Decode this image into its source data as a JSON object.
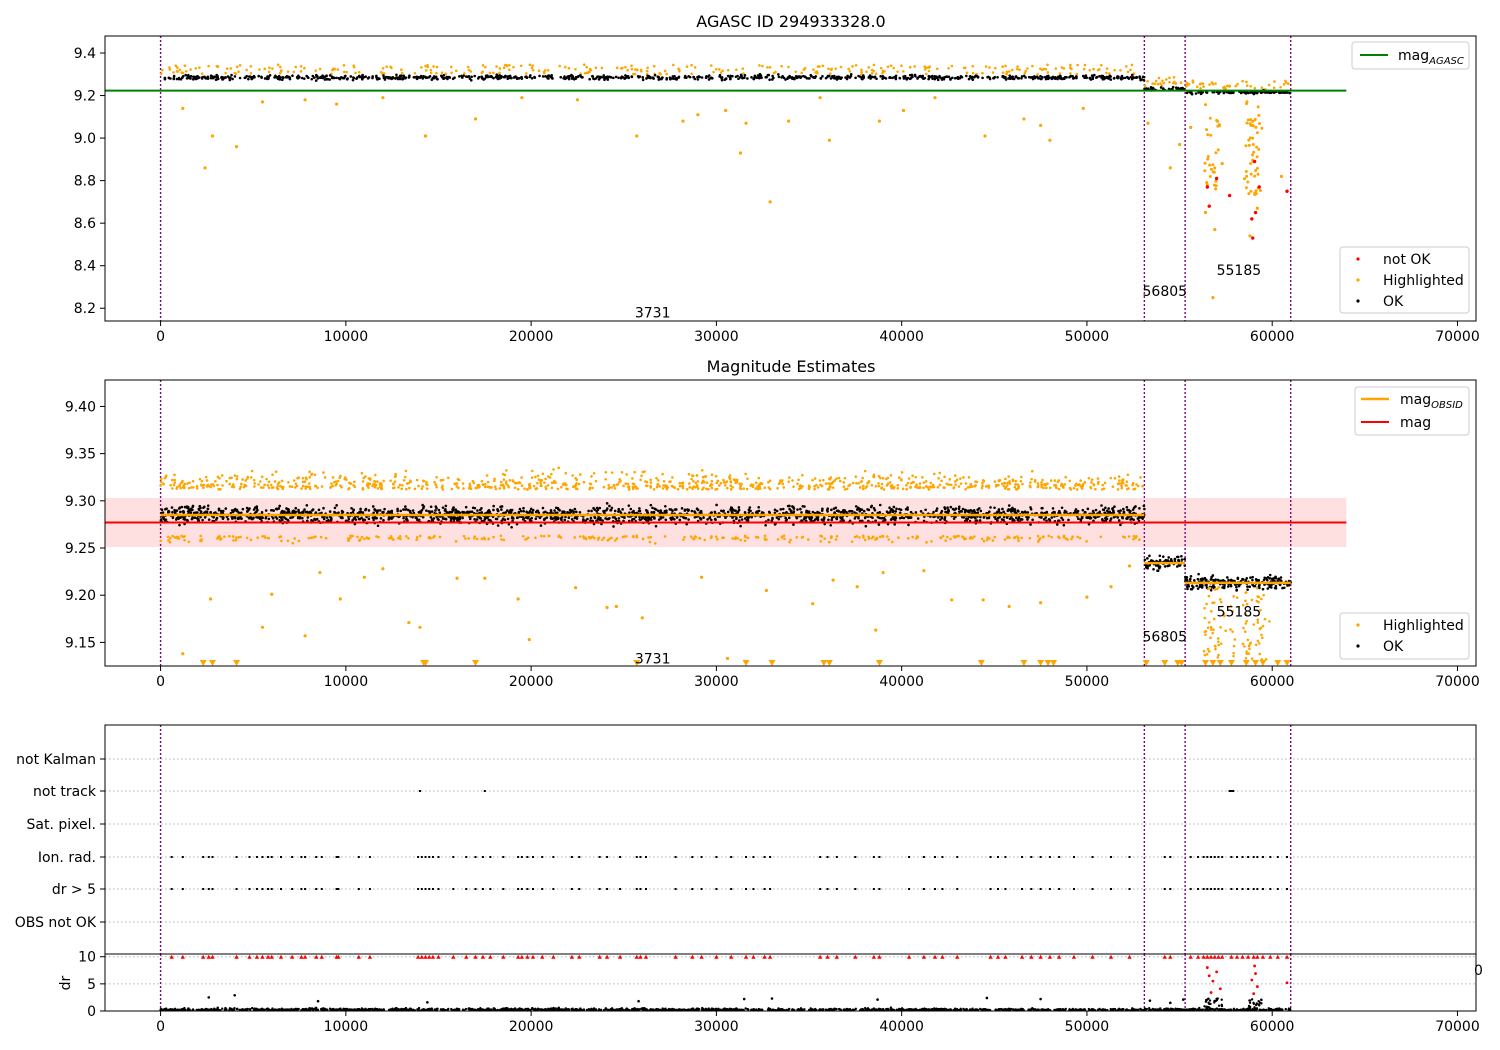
{
  "chart_data": [
    {
      "type": "scatter",
      "title": "AGASC ID 294933328.0",
      "xlim": [
        -3000,
        71000
      ],
      "ylim": [
        8.14,
        9.48
      ],
      "xticks": [
        "0",
        "10000",
        "20000",
        "30000",
        "40000",
        "50000",
        "60000",
        "70000"
      ],
      "yticks": [
        "8.2",
        "8.4",
        "8.6",
        "8.8",
        "9.0",
        "9.2",
        "9.4"
      ],
      "hlines": [
        {
          "name": "mag$_{AGASC}$",
          "label": "mag",
          "sub": "AGASC",
          "y": 9.223,
          "color": "#008000",
          "x": [
            -3000,
            64000
          ]
        }
      ],
      "vlines": [
        0,
        53100,
        55300,
        61000
      ],
      "annotations": [
        {
          "text": "3731",
          "x": 25600,
          "y": 8.18
        },
        {
          "text": "56805",
          "x": 53000,
          "y": 8.28
        },
        {
          "text": "55185",
          "x": 57000,
          "y": 8.38
        }
      ],
      "segments": [
        {
          "x": [
            0,
            53100
          ],
          "center": 9.285,
          "spread": 0.015
        },
        {
          "x": [
            53100,
            55300
          ],
          "center": 9.232,
          "spread": 0.01
        },
        {
          "x": [
            55300,
            61000
          ],
          "center": 9.215,
          "spread": 0.01
        }
      ],
      "legend": {
        "upper": [
          {
            "label": "mag",
            "sub": "AGASC",
            "color": "#008000"
          }
        ],
        "lower": [
          {
            "label": "not OK",
            "color": "#ff0000"
          },
          {
            "label": "Highlighted",
            "color": "#ffa500"
          },
          {
            "label": "OK",
            "color": "#000000"
          }
        ],
        "placement": "upper right / lower right"
      },
      "outliers": {
        "highlighted": [
          [
            2400,
            8.86
          ],
          [
            2800,
            9.01
          ],
          [
            4100,
            8.96
          ],
          [
            1200,
            9.14
          ],
          [
            5500,
            9.17
          ],
          [
            7800,
            9.18
          ],
          [
            9500,
            9.16
          ],
          [
            12000,
            9.19
          ],
          [
            14300,
            9.01
          ],
          [
            17000,
            9.09
          ],
          [
            19500,
            9.19
          ],
          [
            22500,
            9.18
          ],
          [
            25700,
            9.01
          ],
          [
            28200,
            9.08
          ],
          [
            29000,
            9.11
          ],
          [
            30500,
            9.13
          ],
          [
            31600,
            9.07
          ],
          [
            32900,
            8.7
          ],
          [
            31300,
            8.93
          ],
          [
            33900,
            9.08
          ],
          [
            35600,
            9.19
          ],
          [
            36100,
            8.99
          ],
          [
            38800,
            9.08
          ],
          [
            40100,
            9.13
          ],
          [
            41800,
            9.19
          ],
          [
            44500,
            9.01
          ],
          [
            46600,
            9.09
          ],
          [
            47500,
            9.06
          ],
          [
            48000,
            8.99
          ],
          [
            49800,
            9.14
          ],
          [
            53300,
            9.07
          ],
          [
            54500,
            8.86
          ],
          [
            55000,
            8.97
          ],
          [
            55600,
            9.05
          ],
          [
            56800,
            8.25
          ],
          [
            56900,
            8.57
          ],
          [
            56400,
            8.65
          ],
          [
            57300,
            8.88
          ],
          [
            58800,
            8.54
          ],
          [
            59200,
            8.67
          ],
          [
            60500,
            8.82
          ]
        ],
        "not_ok": [
          [
            56500,
            8.77
          ],
          [
            56600,
            8.68
          ],
          [
            57000,
            8.81
          ],
          [
            57700,
            8.73
          ],
          [
            58900,
            8.62
          ],
          [
            59100,
            8.65
          ],
          [
            58950,
            8.53
          ],
          [
            59300,
            8.77
          ],
          [
            60800,
            8.75
          ],
          [
            59050,
            8.89
          ]
        ]
      }
    },
    {
      "type": "scatter",
      "title": "Magnitude Estimates",
      "xlim": [
        -3000,
        71000
      ],
      "ylim": [
        9.125,
        9.428
      ],
      "xticks": [
        "0",
        "10000",
        "20000",
        "30000",
        "40000",
        "50000",
        "60000",
        "70000"
      ],
      "yticks": [
        "9.15",
        "9.20",
        "9.25",
        "9.30",
        "9.35",
        "9.40"
      ],
      "mag_line": {
        "name": "mag",
        "y": 9.277,
        "band": [
          9.251,
          9.303
        ],
        "color": "#ff0000",
        "x": [
          -3000,
          64000
        ]
      },
      "obsid_steps": [
        {
          "x": [
            0,
            53100
          ],
          "y": 9.285
        },
        {
          "x": [
            53100,
            55300
          ],
          "y": 9.234
        },
        {
          "x": [
            55300,
            61000
          ],
          "y": 9.213
        }
      ],
      "vlines": [
        0,
        53100,
        55300,
        61000
      ],
      "annotations": [
        {
          "text": "3731",
          "x": 25600,
          "y": 9.133
        },
        {
          "text": "56805",
          "x": 53000,
          "y": 9.156
        },
        {
          "text": "55185",
          "x": 57000,
          "y": 9.183
        }
      ],
      "legend": {
        "upper": [
          {
            "label": "mag",
            "sub": "OBSID",
            "color": "#ffa500"
          },
          {
            "label": "mag",
            "sub": "",
            "color": "#ff0000"
          }
        ],
        "lower": [
          {
            "label": "Highlighted",
            "color": "#ffa500"
          },
          {
            "label": "OK",
            "color": "#000000"
          }
        ],
        "placement": "upper right / lower right"
      },
      "outliers_low_markers": [
        2300,
        2800,
        4100,
        14200,
        14300,
        17000,
        25700,
        31600,
        33000,
        35800,
        36100,
        38800,
        44300,
        46600,
        47500,
        47900,
        48200,
        53200,
        54200,
        54900,
        55100,
        56400,
        56800,
        57200,
        57800,
        58600,
        59100,
        59500,
        60300,
        60800
      ],
      "outliers": [
        [
          1200,
          9.138
        ],
        [
          2700,
          9.196
        ],
        [
          5500,
          9.166
        ],
        [
          6000,
          9.201
        ],
        [
          7800,
          9.157
        ],
        [
          8600,
          9.224
        ],
        [
          9700,
          9.196
        ],
        [
          11000,
          9.219
        ],
        [
          12000,
          9.228
        ],
        [
          13400,
          9.171
        ],
        [
          14000,
          9.166
        ],
        [
          16000,
          9.218
        ],
        [
          17500,
          9.218
        ],
        [
          19300,
          9.196
        ],
        [
          19900,
          9.153
        ],
        [
          22400,
          9.208
        ],
        [
          24100,
          9.187
        ],
        [
          24600,
          9.188
        ],
        [
          26000,
          9.176
        ],
        [
          29200,
          9.219
        ],
        [
          30600,
          9.133
        ],
        [
          32700,
          9.205
        ],
        [
          35200,
          9.191
        ],
        [
          36300,
          9.216
        ],
        [
          37600,
          9.209
        ],
        [
          38600,
          9.163
        ],
        [
          39000,
          9.224
        ],
        [
          41200,
          9.226
        ],
        [
          42700,
          9.195
        ],
        [
          44400,
          9.195
        ],
        [
          45800,
          9.188
        ],
        [
          47500,
          9.192
        ],
        [
          50000,
          9.198
        ],
        [
          51300,
          9.209
        ],
        [
          52300,
          9.231
        ]
      ]
    },
    {
      "type": "scatter",
      "title": "",
      "xlim": [
        -3000,
        71000
      ],
      "flag_rows": [
        "not Kalman",
        "not track",
        "Sat. pixel.",
        "Ion. rad.",
        "dr > 5",
        "OBS not OK"
      ],
      "dr_axis": {
        "ylabel": "dr",
        "ylim": [
          0,
          10.5
        ],
        "yticks": [
          "0",
          "5",
          "10"
        ],
        "clip": 10
      },
      "xticks": [
        "0",
        "10000",
        "20000",
        "30000",
        "40000",
        "50000",
        "60000",
        "70000"
      ],
      "stray_tick": "0",
      "vlines": [
        0,
        53100,
        55300,
        61000
      ],
      "not_track_x": [
        14000,
        17500,
        57700,
        57800,
        57900
      ],
      "ion_x": [
        600,
        1200,
        2300,
        2600,
        2800,
        4100,
        4800,
        5200,
        5500,
        5800,
        6000,
        6500,
        7100,
        7600,
        7800,
        8400,
        8700,
        9500,
        9600,
        10700,
        11300,
        13900,
        14100,
        14300,
        14500,
        14700,
        15000,
        15800,
        16500,
        17000,
        17400,
        17800,
        18500,
        19300,
        19500,
        19800,
        20100,
        20600,
        21200,
        22200,
        22600,
        23700,
        24100,
        24800,
        25700,
        25900,
        26200,
        27800,
        28700,
        29200,
        30000,
        30800,
        31600,
        32000,
        32600,
        32900,
        35600,
        36000,
        36500,
        37500,
        38500,
        38800,
        40400,
        41200,
        41800,
        42200,
        43000,
        44800,
        45200,
        45600,
        46500,
        47000,
        47500,
        48000,
        48500,
        49300,
        50300,
        51300,
        52300,
        54200,
        54500,
        55600,
        56000,
        56300,
        56500,
        56700,
        56900,
        57100,
        57300,
        57800,
        58100,
        58400,
        58700,
        59000,
        59200,
        59500,
        59900,
        60300,
        60800
      ],
      "dr_outliers": [
        [
          2600,
          2.5
        ],
        [
          4000,
          2.9
        ],
        [
          8500,
          1.8
        ],
        [
          14400,
          1.6
        ],
        [
          25800,
          1.8
        ],
        [
          31500,
          2.2
        ],
        [
          33000,
          2.3
        ],
        [
          38700,
          2.1
        ],
        [
          44600,
          2.4
        ],
        [
          47500,
          2.2
        ],
        [
          53400,
          1.9
        ],
        [
          54500,
          1.5
        ],
        [
          55200,
          2.1
        ]
      ],
      "dr_red": [
        [
          56500,
          8.0
        ],
        [
          56600,
          6.5
        ],
        [
          56800,
          5.5
        ],
        [
          57000,
          7.2
        ],
        [
          57200,
          4.1
        ],
        [
          58900,
          5.7
        ],
        [
          59000,
          3.2
        ],
        [
          59100,
          6.9
        ],
        [
          59200,
          4.5
        ],
        [
          60800,
          5.2
        ],
        [
          56700,
          3.4
        ],
        [
          59050,
          8.3
        ]
      ]
    }
  ]
}
